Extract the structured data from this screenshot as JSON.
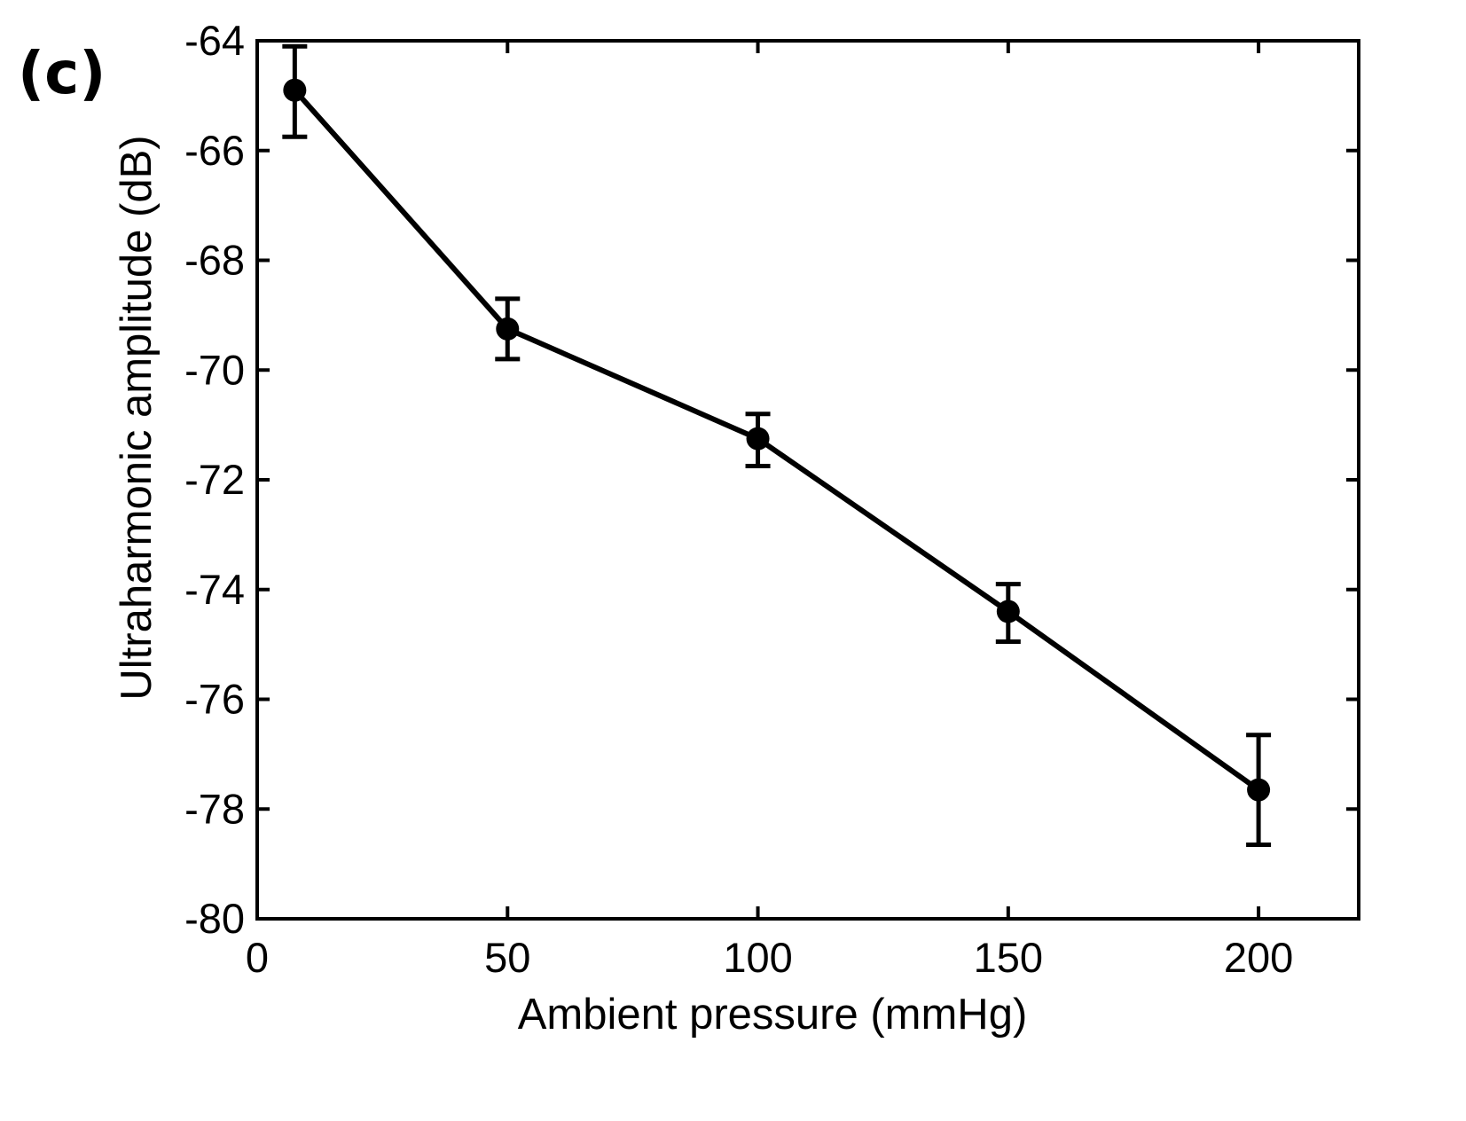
{
  "panel_label": "(c)",
  "chart_data": {
    "type": "line",
    "title": "",
    "xlabel": "Ambient pressure (mmHg)",
    "ylabel": "Ultraharmonic amplitude (dB)",
    "xlim": [
      0,
      220
    ],
    "ylim": [
      -80,
      -64
    ],
    "xticks": [
      0,
      50,
      100,
      150,
      200
    ],
    "xtick_labels": [
      "0",
      "50",
      "100",
      "150",
      "200"
    ],
    "yticks": [
      -80,
      -78,
      -76,
      -74,
      -72,
      -70,
      -68,
      -66,
      -64
    ],
    "ytick_labels": [
      "-80",
      "-78",
      "-76",
      "-74",
      "-72",
      "-70",
      "-68",
      "-66",
      "-64"
    ],
    "grid": false,
    "series": [
      {
        "name": "ultraharmonic",
        "color": "#000000",
        "marker": "circle",
        "x": [
          7.5,
          50,
          100,
          150,
          200
        ],
        "y": [
          -64.9,
          -69.25,
          -71.25,
          -74.4,
          -77.65
        ],
        "err_low": [
          -65.75,
          -69.8,
          -71.75,
          -74.95,
          -78.65
        ],
        "err_high": [
          -64.1,
          -68.7,
          -70.8,
          -73.9,
          -76.65
        ]
      }
    ]
  }
}
